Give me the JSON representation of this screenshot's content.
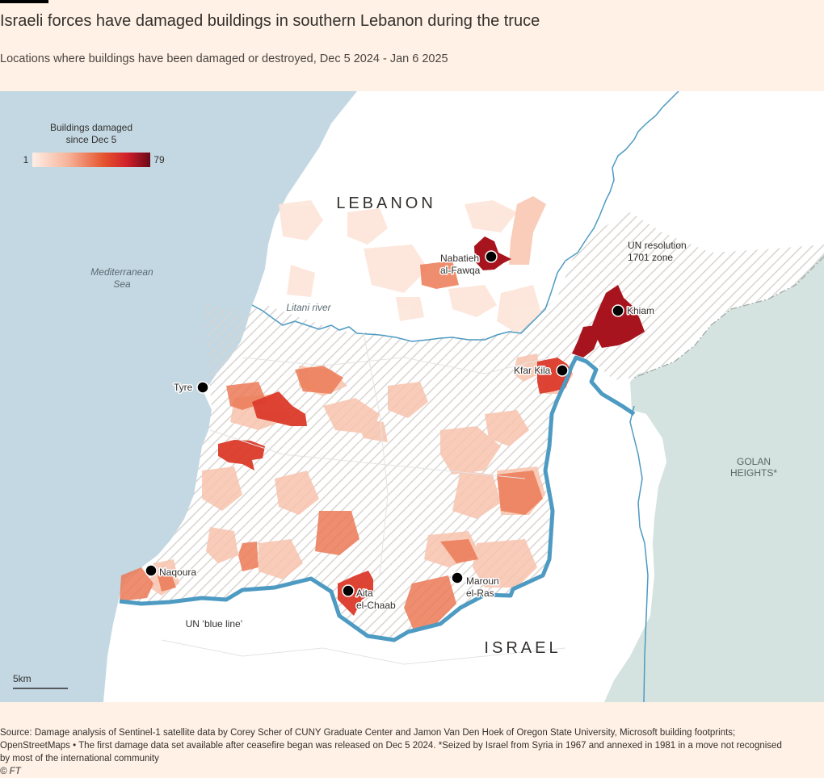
{
  "title": "Israeli forces have damaged buildings in southern Lebanon during the truce",
  "subtitle": "Locations where buildings have been damaged or destroyed, Dec 5 2024 - Jan 6 2025",
  "legend": {
    "title_line1": "Buildings damaged",
    "title_line2": "since Dec 5",
    "min": "1",
    "max": "79",
    "colors": [
      "#fdeee6",
      "#f6b49b",
      "#e5552f",
      "#d1202a",
      "#6b0a18"
    ]
  },
  "regions": {
    "lebanon": "LEBANON",
    "israel": "ISRAEL",
    "golan_line1": "GOLAN",
    "golan_line2": "HEIGHTS*",
    "sea_line1": "Mediterranean",
    "sea_line2": "Sea",
    "river": "Litani river",
    "un_zone_line1": "UN resolution",
    "un_zone_line2": "1701 zone",
    "blue_line": "UN ‘blue line’"
  },
  "places": {
    "nabatieh_line1": "Nabatieh",
    "nabatieh_line2": "al-Fawqa",
    "khiam": "Khiam",
    "kfar_kila": "Kfar Kila",
    "tyre": "Tyre",
    "naqoura": "Naqoura",
    "aita_line1": "Aita",
    "aita_line2": "el-Chaab",
    "maroun_line1": "Maroun",
    "maroun_line2": "el-Ras"
  },
  "scale_bar": "5km",
  "colors": {
    "sea": "#c3d8e3",
    "land": "#ffffff",
    "golan": "#d4e3df",
    "blue_line": "#4d9ac2",
    "background": "#fff1e5"
  },
  "source_line1": "Source: Damage analysis of Sentinel-1 satellite data by Corey Scher of CUNY Graduate Center and Jamon Van Den Hoek of Oregon State University, Microsoft building footprints;",
  "source_line2": "OpenStreetMaps • The first damage data set available after ceasefire began was released on Dec 5 2024. *Seized by Israel from Syria in 1967 and annexed in 1981 in a move not recognised",
  "source_line3": "by most of the international community",
  "copyright": "© FT"
}
